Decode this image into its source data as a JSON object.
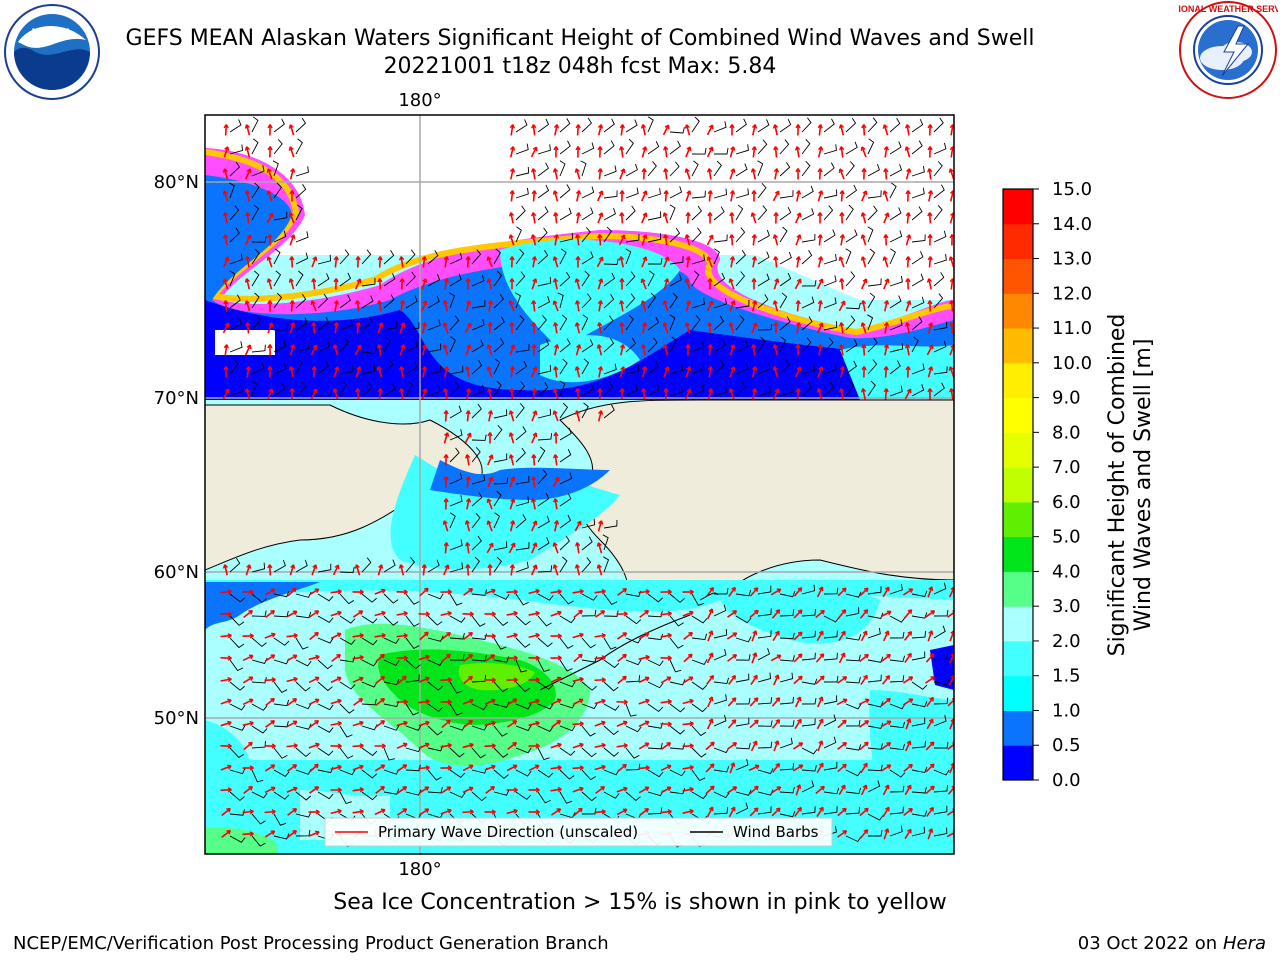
{
  "title": {
    "line1": "GEFS MEAN Alaskan Waters Significant Height of Combined Wind Waves and Swell",
    "line2": "20221001 t18z 048h fcst   Max: 5.84"
  },
  "logos": {
    "left": {
      "text": "NOAA",
      "icon": "noaa-logo"
    },
    "right": {
      "icon": "nws-logo",
      "ring_text": "NATIONAL WEATHER SERVICE"
    }
  },
  "map": {
    "lon_labels": [
      "180°",
      "180°"
    ],
    "lat_labels": [
      "80°N",
      "70°N",
      "60°N",
      "50°N"
    ],
    "legend": {
      "entries": [
        {
          "label": "Primary Wave Direction (unscaled)",
          "color": "#ff0000"
        },
        {
          "label": "Wind Barbs",
          "color": "#000000"
        }
      ]
    },
    "colors": {
      "land": "#efecdc",
      "ice": "#ff4dff",
      "ice_edge": "#ffc800"
    }
  },
  "colorbar": {
    "title_line1": "Significant Height of Combined",
    "title_line2": "Wind Waves and Swell [m]",
    "ticks": [
      "0.0",
      "0.5",
      "1.0",
      "1.5",
      "2.0",
      "3.0",
      "4.0",
      "5.0",
      "6.0",
      "7.0",
      "8.0",
      "9.0",
      "10.0",
      "11.0",
      "12.0",
      "13.0",
      "14.0",
      "15.0"
    ],
    "colors": [
      "#0000ff",
      "#0a74ff",
      "#00ffff",
      "#44ffff",
      "#aaffff",
      "#55ff88",
      "#00e61a",
      "#5fef00",
      "#bfff00",
      "#e6ff00",
      "#ffff00",
      "#ffee00",
      "#ffbb00",
      "#ff8800",
      "#ff5500",
      "#ff2a00",
      "#ff0000"
    ]
  },
  "caption": "Sea Ice Concentration > 15% is shown in pink to yellow",
  "footer": {
    "left": "NCEP/EMC/Verification Post Processing Product Generation Branch",
    "right_prefix": "03 Oct 2022 on ",
    "right_machine": "Hera"
  }
}
